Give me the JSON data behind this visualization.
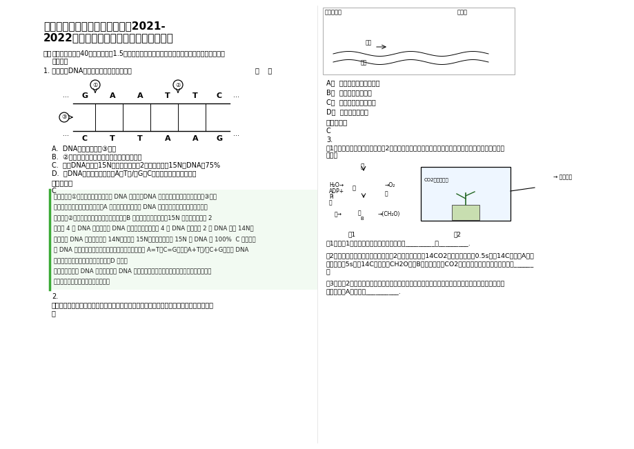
{
  "bg_color": "#ffffff",
  "title_line1": "湖南省益阳市教育学院附属中学2021-",
  "title_line2": "2022学年高三生物下学期期末试卷含解析",
  "section_header": "一、",
  "section_intro1": "选择题（本题共40小题，每小题1.5分。在每小题给出的四个选项中，只有一项是符合题目要",
  "section_intro2": "求的。）",
  "q1_text": "1. 关于如图DNA分子片段的说法不正确的是",
  "q1_bracket": "（    ）",
  "q1_A": "A.  DNA解旋酶作用于③部位",
  "q1_B": "B.  ②处的碱基缺失不会导致染色体结构的变异",
  "q1_C": "C.  把此DNA放在含15N的培养液中复制2代，子代中含15N的DNA占75%",
  "q1_D": "D.  该DNA的特异性表现在（A＋T）/（G＋C）的比例及其排列顺序上",
  "ans_label": "参考答案：",
  "q1_ans": "C",
  "analysis_line1": "试题分析：①部位是磷酸二酯键，是 DNA 聚合酶、DNA 连接酶和限制酶的作用位点。③部位",
  "analysis_line2": "是氢键，是解旋酶的作用位点；A 正确。基因突变是指 DNA 分子中碱基对的缺少、增添或替",
  "analysis_line3": "换，所以②处碱基对的缺失将导致基因突变；B 正确。将此基因放在含15N 的培养液中复制 2",
  "analysis_line4": "代得到 4 个 DNA 分子，根据 DNA 半保留复制特点，这 4 个 DNA 分子中有 2 个 DNA 只含 14N，",
  "analysis_line5": "另外两个 DNA 分子，一半含 14N，一半含 15N。所以子代中含 15N 的 DNA 为 100%  C 错误。双",
  "analysis_line6": "链 DNA 分子中的碱基配对遵循碱基互补配对原则，即 A=T、C=G，则（A+T）/（C+G）不同 DNA",
  "analysis_line7": "分子比值不同，体现基因的特异性；D 正确。",
  "analysis_line8": "考点：本题结合 DNA 结构图，考查 DNA 的相关知识，意在考查考生的识图能力、识记能力",
  "analysis_line9": "和理解应用能力。属于中等难度题。",
  "q2_num": "2.",
  "q2_line1": "作为系统的边界，细胞膜在细胞的生命活动中有多种功能。下图主要表示了细胞膜的何种功",
  "q2_line2": "能",
  "q2_A": "A．  将细胞与外界环境分开",
  "q2_B": "B．  控制物质进出细胞",
  "q2_C": "C．  进行细胞间信息交流",
  "q2_D": "D．  促进物质的运输",
  "q2_ans_label": "参考答案：",
  "q2_ans": "C",
  "q3_num": "3.",
  "q3_line1": "图1是番茄光合作用过程图解，图2是在密闭、透明的玻璃小室中培养番茄幼苗的实验装置。回答下列",
  "q3_line2": "问题。",
  "q3_sub1": "（1）由图1可知，甲、乙分别代表的物质是_________，_________.",
  "q3_sub2_1": "（2）在适宜温度和光照条件下，向图2所示的装置通入14CO2。当反应进行到0.5s时，14C出现在A中；",
  "q3_sub2_2": "反应进行到5s时，14C出现在（CH2O）和B中。这种探究CO2中碳的转移路径的实验方法称为______",
  "q3_sub2_3": "。",
  "q3_sub3_1": "（3）将图2所示的装置放在适宜温度和黑暗条件下一段时间后，再移至适宜温度和适宜光照条件下，",
  "q3_sub3_2": "则叶绿体内A的含量将__________.",
  "dna_top": [
    "G",
    "A",
    "A",
    "T",
    "T",
    "C"
  ],
  "dna_bot": [
    "C",
    "T",
    "T",
    "A",
    "A",
    "G"
  ],
  "left_cell_label": "内分泌细胞",
  "right_cell_label": "靶细胞",
  "hormone_label": "激素",
  "vessel_label": "血管",
  "fig1_label": "图1",
  "fig2_label": "图2",
  "colored_drop": "有色液滴",
  "co2_device": "CO2浓度变化仪"
}
